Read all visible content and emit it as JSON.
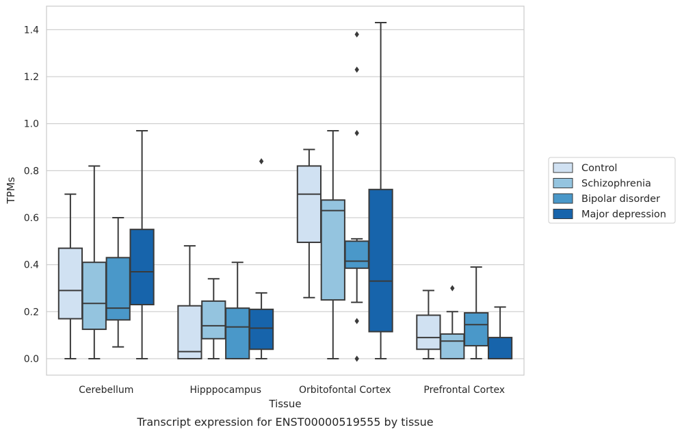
{
  "chart_data": {
    "type": "box",
    "caption": "Transcript expression for ENST00000519555 by tissue",
    "xlabel": "Tissue",
    "ylabel": "TPMs",
    "ylim": [
      -0.07,
      1.5
    ],
    "yticks": [
      "0.0",
      "0.2",
      "0.4",
      "0.6",
      "0.8",
      "1.0",
      "1.2",
      "1.4"
    ],
    "grid": true,
    "legend_position": "right",
    "categories": [
      "Cerebellum",
      "Hipppocampus",
      "Orbitofontal Cortex",
      "Prefrontal Cortex"
    ],
    "series": [
      {
        "name": "Control",
        "color": "#d0e1f2",
        "boxes": [
          {
            "whislo": 0.0,
            "q1": 0.17,
            "med": 0.29,
            "q3": 0.47,
            "whishi": 0.7,
            "fliers": []
          },
          {
            "whislo": 0.0,
            "q1": 0.0,
            "med": 0.03,
            "q3": 0.225,
            "whishi": 0.48,
            "fliers": []
          },
          {
            "whislo": 0.26,
            "q1": 0.495,
            "med": 0.7,
            "q3": 0.82,
            "whishi": 0.89,
            "fliers": []
          },
          {
            "whislo": 0.0,
            "q1": 0.04,
            "med": 0.09,
            "q3": 0.185,
            "whishi": 0.29,
            "fliers": []
          }
        ]
      },
      {
        "name": "Schizophrenia",
        "color": "#94c4df",
        "boxes": [
          {
            "whislo": 0.0,
            "q1": 0.125,
            "med": 0.235,
            "q3": 0.41,
            "whishi": 0.82,
            "fliers": []
          },
          {
            "whislo": 0.0,
            "q1": 0.085,
            "med": 0.14,
            "q3": 0.245,
            "whishi": 0.34,
            "fliers": []
          },
          {
            "whislo": 0.0,
            "q1": 0.25,
            "med": 0.63,
            "q3": 0.675,
            "whishi": 0.97,
            "fliers": []
          },
          {
            "whislo": 0.0,
            "q1": 0.0,
            "med": 0.075,
            "q3": 0.105,
            "whishi": 0.2,
            "fliers": [
              0.3
            ]
          }
        ]
      },
      {
        "name": "Bipolar disorder",
        "color": "#4a98c9",
        "boxes": [
          {
            "whislo": 0.05,
            "q1": 0.165,
            "med": 0.215,
            "q3": 0.43,
            "whishi": 0.6,
            "fliers": []
          },
          {
            "whislo": 0.0,
            "q1": 0.0,
            "med": 0.135,
            "q3": 0.215,
            "whishi": 0.41,
            "fliers": []
          },
          {
            "whislo": 0.24,
            "q1": 0.385,
            "med": 0.415,
            "q3": 0.5,
            "whishi": 0.51,
            "fliers": [
              0.16,
              0.0,
              0.96,
              1.23,
              1.38
            ]
          },
          {
            "whislo": 0.0,
            "q1": 0.055,
            "med": 0.145,
            "q3": 0.195,
            "whishi": 0.39,
            "fliers": []
          }
        ]
      },
      {
        "name": "Major depression",
        "color": "#1764ab",
        "boxes": [
          {
            "whislo": 0.0,
            "q1": 0.23,
            "med": 0.37,
            "q3": 0.55,
            "whishi": 0.97,
            "fliers": []
          },
          {
            "whislo": 0.0,
            "q1": 0.04,
            "med": 0.13,
            "q3": 0.21,
            "whishi": 0.28,
            "fliers": [
              0.84
            ]
          },
          {
            "whislo": 0.0,
            "q1": 0.115,
            "med": 0.33,
            "q3": 0.72,
            "whishi": 1.43,
            "fliers": []
          },
          {
            "whislo": 0.0,
            "q1": 0.0,
            "med": 0.0,
            "q3": 0.09,
            "whishi": 0.22,
            "fliers": []
          }
        ]
      }
    ]
  }
}
